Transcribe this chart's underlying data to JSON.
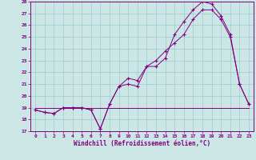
{
  "xlabel": "Windchill (Refroidissement éolien,°C)",
  "bg_color": "#cce5e5",
  "line_color": "#800080",
  "grid_color": "#99cccc",
  "xlim": [
    -0.5,
    23.5
  ],
  "ylim": [
    17,
    28
  ],
  "xticks": [
    0,
    1,
    2,
    3,
    4,
    5,
    6,
    7,
    8,
    9,
    10,
    11,
    12,
    13,
    14,
    15,
    16,
    17,
    18,
    19,
    20,
    21,
    22,
    23
  ],
  "yticks": [
    17,
    18,
    19,
    20,
    21,
    22,
    23,
    24,
    25,
    26,
    27,
    28
  ],
  "line1_x": [
    0,
    1,
    2,
    3,
    4,
    5,
    6,
    7,
    8,
    9,
    10,
    11,
    12,
    13,
    14,
    15,
    16,
    17,
    18,
    19,
    20,
    21,
    22,
    23
  ],
  "line1_y": [
    18.8,
    18.6,
    18.5,
    19.0,
    19.0,
    19.0,
    18.8,
    17.2,
    19.3,
    20.8,
    21.0,
    20.8,
    22.5,
    22.5,
    23.2,
    25.2,
    26.3,
    27.3,
    28.0,
    27.8,
    26.8,
    25.2,
    21.0,
    19.3
  ],
  "line2_x": [
    0,
    1,
    2,
    3,
    4,
    5,
    6,
    7,
    8,
    9,
    10,
    11,
    12,
    13,
    14,
    15,
    16,
    17,
    18,
    19,
    20,
    21,
    22,
    23
  ],
  "line2_y": [
    18.8,
    18.6,
    18.5,
    19.0,
    19.0,
    19.0,
    18.8,
    17.2,
    19.3,
    20.8,
    21.5,
    21.3,
    22.5,
    23.0,
    23.8,
    24.5,
    25.2,
    26.5,
    27.3,
    27.3,
    26.5,
    25.0,
    21.0,
    19.3
  ],
  "line3_x": [
    0,
    23
  ],
  "line3_y": [
    19.0,
    19.0
  ],
  "xlabel_fontsize": 5.5,
  "tick_fontsize": 4.5
}
